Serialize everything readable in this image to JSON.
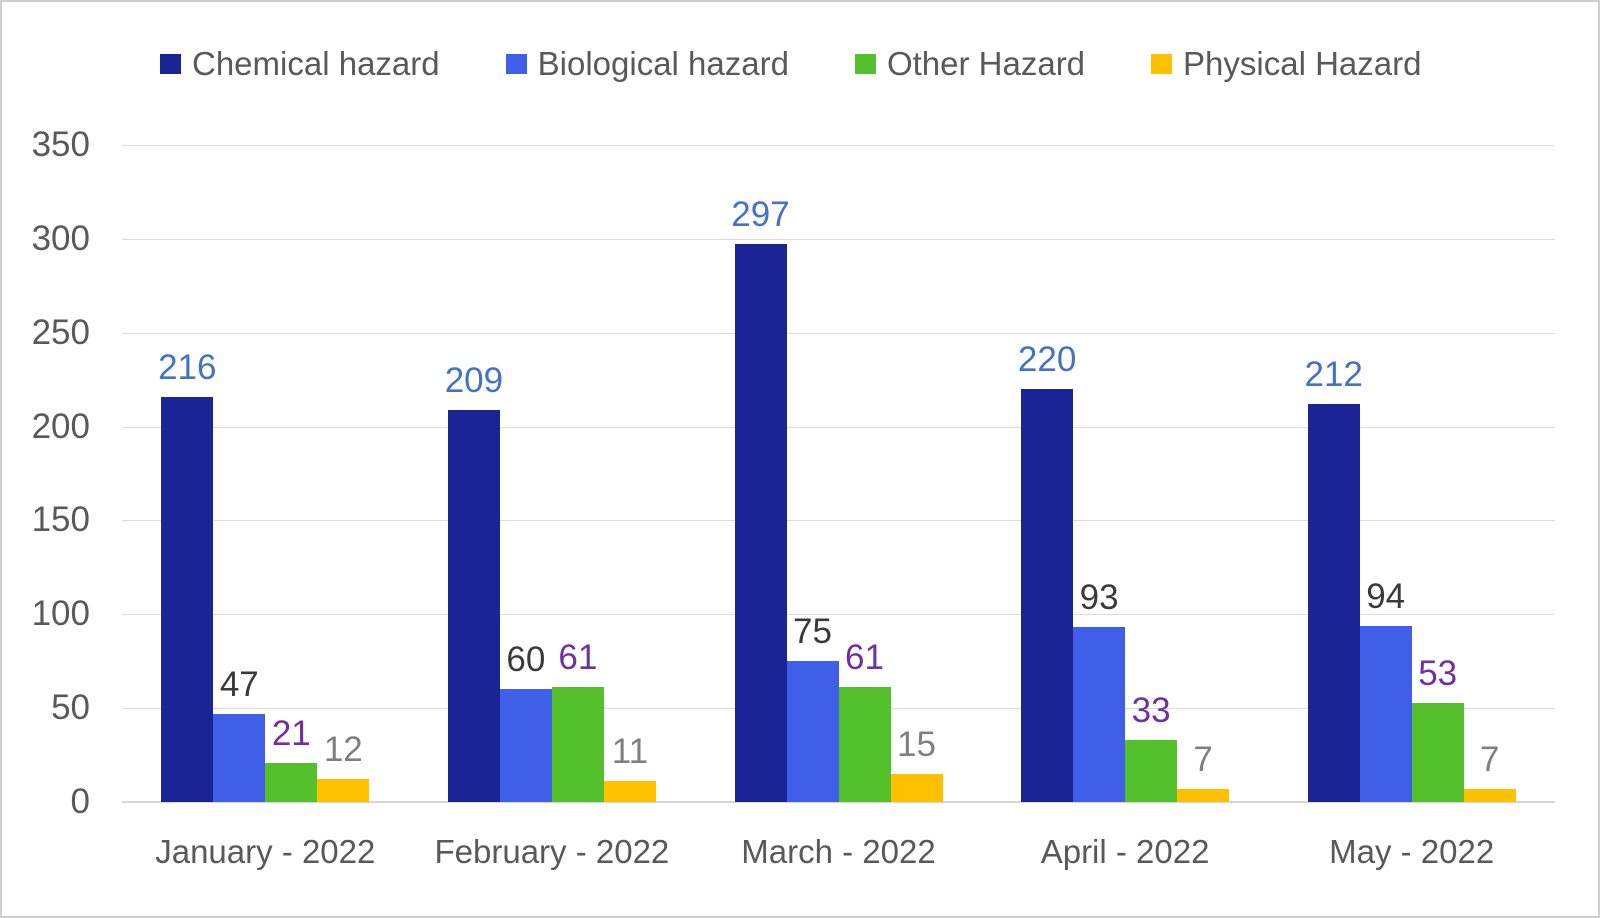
{
  "chart_data": {
    "type": "bar",
    "title": "",
    "xlabel": "",
    "ylabel": "",
    "legend_position": "top",
    "grid": true,
    "categories": [
      "January - 2022",
      "February - 2022",
      "March - 2022",
      "April - 2022",
      "May - 2022"
    ],
    "series": [
      {
        "name": "Chemical hazard",
        "color": "#1b2494",
        "label_color": "#4472c4",
        "values": [
          216,
          209,
          297,
          220,
          212
        ]
      },
      {
        "name": "Biological hazard",
        "color": "#3f5fe9",
        "label_color": "#3a3a3a",
        "values": [
          47,
          60,
          75,
          93,
          94
        ]
      },
      {
        "name": "Other Hazard",
        "color": "#54c02c",
        "label_color": "#7030a0",
        "values": [
          21,
          61,
          61,
          33,
          53
        ]
      },
      {
        "name": "Physical Hazard",
        "color": "#ffc000",
        "label_color": "#808080",
        "values": [
          12,
          11,
          15,
          7,
          7
        ]
      }
    ],
    "y_axis": {
      "min": 0,
      "max": 350,
      "step": 50,
      "tick_labels": [
        "0",
        "50",
        "100",
        "150",
        "200",
        "250",
        "300",
        "350"
      ]
    }
  },
  "colors": {
    "background": "#ffffff",
    "frame_border": "#cfcfcf",
    "gridline": "#dcdcdc",
    "axis_text": "#595959"
  }
}
